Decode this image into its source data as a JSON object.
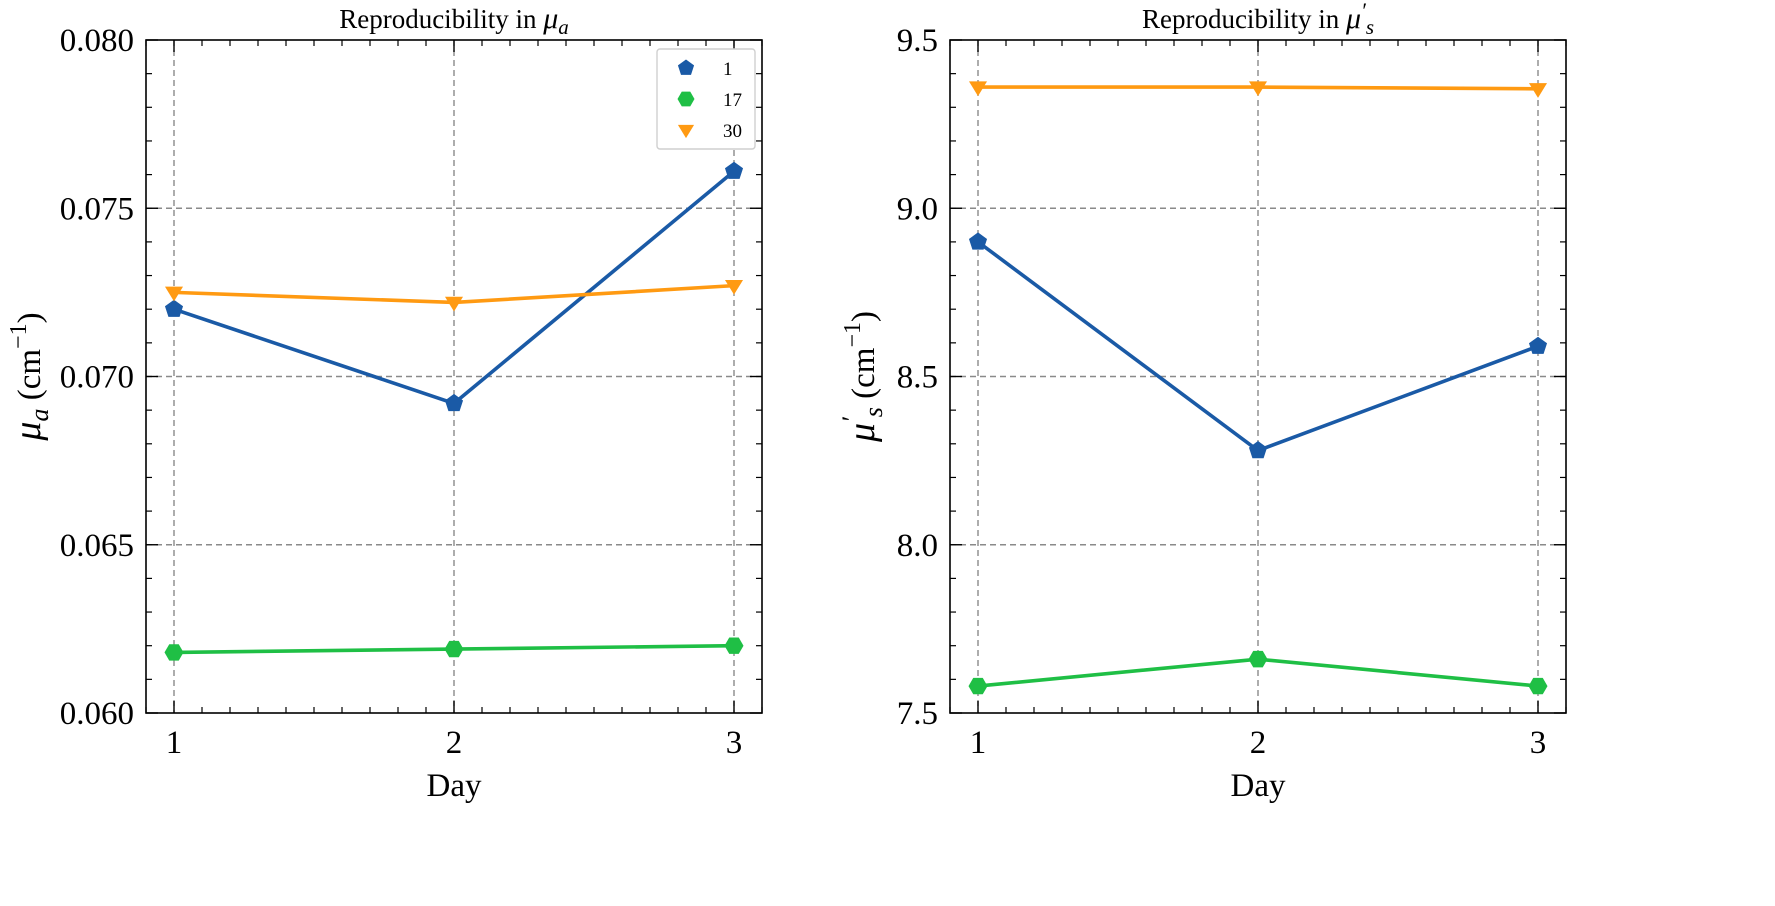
{
  "chart_data": [
    {
      "type": "line",
      "title": "Reproducibility in μ_a",
      "title_prefix": "Reproducibility in ",
      "title_symbol": "μ",
      "title_sub": "a",
      "xlabel": "Day",
      "ylabel": "μ_a (cm^-1)",
      "ylabel_symbol": "μ",
      "ylabel_sub": "a",
      "ylabel_unit": "(cm",
      "ylabel_exp": "−1",
      "ylabel_close": ")",
      "x": [
        1,
        2,
        3
      ],
      "xticks": [
        "1",
        "2",
        "3"
      ],
      "xlim": [
        0.9,
        3.1
      ],
      "ylim": [
        0.06,
        0.08
      ],
      "yticks": [
        "0.060",
        "0.065",
        "0.070",
        "0.075",
        "0.080"
      ],
      "ytick_values": [
        0.06,
        0.065,
        0.07,
        0.075,
        0.08
      ],
      "grid": true,
      "legend": "top-right",
      "series": [
        {
          "name": "1",
          "color": "#1a5aa6",
          "marker": "pentagon",
          "values": [
            0.072,
            0.0692,
            0.0761
          ]
        },
        {
          "name": "17",
          "color": "#1fbf45",
          "marker": "hexagon",
          "values": [
            0.0618,
            0.0619,
            0.062
          ]
        },
        {
          "name": "30",
          "color": "#ff9a12",
          "marker": "triangle-down",
          "values": [
            0.0725,
            0.0722,
            0.0727
          ]
        }
      ]
    },
    {
      "type": "line",
      "title": "Reproducibility in μ′_s",
      "title_prefix": "Reproducibility in ",
      "title_symbol": "μ",
      "title_sub": "s",
      "title_prime": "′",
      "xlabel": "Day",
      "ylabel": "μ′_s (cm^-1)",
      "ylabel_symbol": "μ",
      "ylabel_sub": "s",
      "ylabel_prime": "′",
      "ylabel_unit": "(cm",
      "ylabel_exp": "−1",
      "ylabel_close": ")",
      "x": [
        1,
        2,
        3
      ],
      "xticks": [
        "1",
        "2",
        "3"
      ],
      "xlim": [
        0.9,
        3.1
      ],
      "ylim": [
        7.5,
        9.5
      ],
      "yticks": [
        "7.5",
        "8.0",
        "8.5",
        "9.0",
        "9.5"
      ],
      "ytick_values": [
        7.5,
        8.0,
        8.5,
        9.0,
        9.5
      ],
      "grid": true,
      "series": [
        {
          "color": "#1a5aa6",
          "marker": "pentagon",
          "values": [
            8.9,
            8.28,
            8.59
          ]
        },
        {
          "color": "#1fbf45",
          "marker": "hexagon",
          "values": [
            7.58,
            7.66,
            7.58
          ]
        },
        {
          "color": "#ff9a12",
          "marker": "triangle-down",
          "values": [
            9.36,
            9.36,
            9.355
          ]
        }
      ]
    }
  ]
}
